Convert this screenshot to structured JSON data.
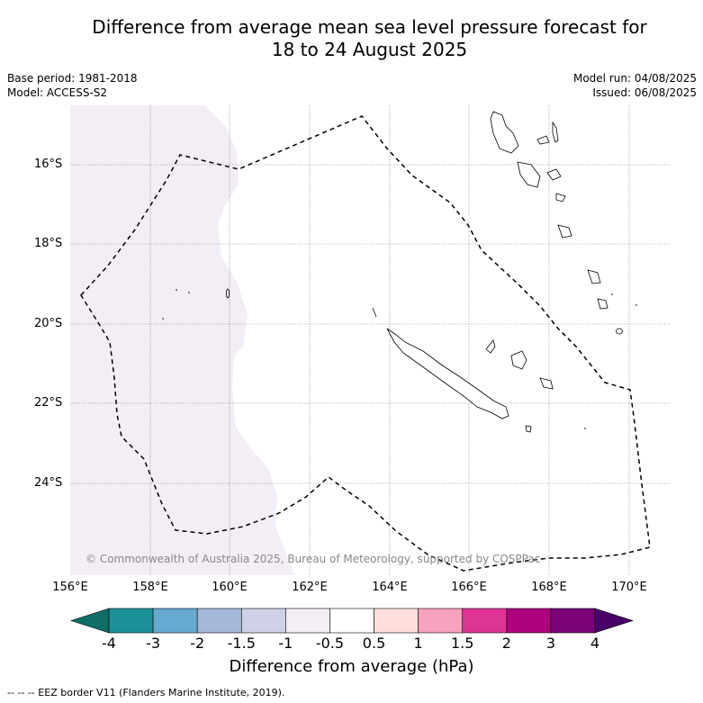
{
  "title_line1": "Difference from average mean sea level pressure forecast for",
  "title_line2": "18 to 24 August 2025",
  "base_period": "Base period: 1981-2018",
  "model": "Model: ACCESS-S2",
  "model_run": "Model run: 04/08/2025",
  "issued": "Issued: 06/08/2025",
  "copyright": "© Commonwealth of Australia 2025, Bureau of Meteorology, supported by COSPPac",
  "lat_labels": [
    "16°S",
    "18°S",
    "20°S",
    "22°S",
    "24°S"
  ],
  "lon_labels": [
    "156°E",
    "158°E",
    "160°E",
    "162°E",
    "164°E",
    "166°E",
    "168°E",
    "170°E"
  ],
  "colorbar": {
    "ticks": [
      "-4",
      "-3",
      "-2",
      "-1.5",
      "-1",
      "-0.5",
      "0.5",
      "1",
      "1.5",
      "2",
      "3",
      "4"
    ],
    "colors": [
      "#0f6e65",
      "#1c9099",
      "#67aad0",
      "#a5b8da",
      "#cfd1e6",
      "#f3eef6",
      "#ffffff",
      "#fddedc",
      "#f8a2bd",
      "#dd3495",
      "#ae017e",
      "#7a0177",
      "#49006a"
    ],
    "title": "Difference from average (hPa)"
  },
  "footnote": "--  --  -- EEZ border V11 (Flanders Marine Institute, 2019).",
  "map_colors": {
    "shaded_region": "#f3eef6",
    "eez_border": "#000000",
    "grid": "#555555"
  }
}
